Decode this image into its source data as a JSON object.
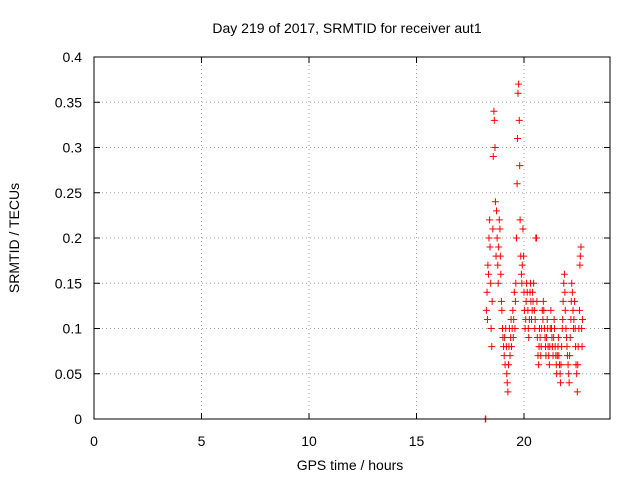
{
  "chart_data": {
    "type": "scatter",
    "title": "Day 219 of 2017, SRMTID for receiver aut1",
    "xlabel": "GPS time / hours",
    "ylabel": "SRMTID / TECUs",
    "xlim": [
      0,
      24
    ],
    "ylim": [
      0,
      0.4
    ],
    "xticks": [
      0,
      5,
      10,
      15,
      20
    ],
    "yticks": [
      0,
      0.05,
      0.1,
      0.15,
      0.2,
      0.25,
      0.3,
      0.35,
      0.4
    ],
    "grid": true,
    "marker": "+",
    "color": "#ff0000",
    "series": [
      {
        "name": "SRMTID",
        "points": [
          [
            18.2,
            0.0
          ],
          [
            18.22,
            0.0
          ],
          [
            18.25,
            0.12
          ],
          [
            18.28,
            0.14
          ],
          [
            18.3,
            0.11
          ],
          [
            18.32,
            0.17
          ],
          [
            18.35,
            0.16
          ],
          [
            18.37,
            0.2
          ],
          [
            18.4,
            0.22
          ],
          [
            18.42,
            0.19
          ],
          [
            18.45,
            0.15
          ],
          [
            18.47,
            0.1
          ],
          [
            18.5,
            0.08
          ],
          [
            18.52,
            0.13
          ],
          [
            18.55,
            0.21
          ],
          [
            18.57,
            0.29
          ],
          [
            18.6,
            0.34
          ],
          [
            18.62,
            0.33
          ],
          [
            18.65,
            0.3
          ],
          [
            18.67,
            0.24
          ],
          [
            18.7,
            0.18
          ],
          [
            18.72,
            0.23
          ],
          [
            18.75,
            0.2
          ],
          [
            18.78,
            0.17
          ],
          [
            18.8,
            0.15
          ],
          [
            18.82,
            0.19
          ],
          [
            18.85,
            0.22
          ],
          [
            18.88,
            0.21
          ],
          [
            18.9,
            0.18
          ],
          [
            18.92,
            0.16
          ],
          [
            18.95,
            0.13
          ],
          [
            18.97,
            0.12
          ],
          [
            19.0,
            0.1
          ],
          [
            19.02,
            0.09
          ],
          [
            19.05,
            0.08
          ],
          [
            19.08,
            0.07
          ],
          [
            19.1,
            0.09
          ],
          [
            19.12,
            0.06
          ],
          [
            19.15,
            0.1
          ],
          [
            19.18,
            0.08
          ],
          [
            19.2,
            0.05
          ],
          [
            19.22,
            0.04
          ],
          [
            19.25,
            0.03
          ],
          [
            19.28,
            0.06
          ],
          [
            19.3,
            0.08
          ],
          [
            19.32,
            0.1
          ],
          [
            19.35,
            0.07
          ],
          [
            19.38,
            0.09
          ],
          [
            19.4,
            0.11
          ],
          [
            19.42,
            0.08
          ],
          [
            19.45,
            0.1
          ],
          [
            19.48,
            0.12
          ],
          [
            19.5,
            0.09
          ],
          [
            19.52,
            0.11
          ],
          [
            19.55,
            0.14
          ],
          [
            19.58,
            0.1
          ],
          [
            19.6,
            0.13
          ],
          [
            19.62,
            0.15
          ],
          [
            19.65,
            0.2
          ],
          [
            19.68,
            0.26
          ],
          [
            19.7,
            0.31
          ],
          [
            19.72,
            0.36
          ],
          [
            19.75,
            0.37
          ],
          [
            19.78,
            0.33
          ],
          [
            19.8,
            0.28
          ],
          [
            19.82,
            0.22
          ],
          [
            19.85,
            0.18
          ],
          [
            19.88,
            0.16
          ],
          [
            19.9,
            0.15
          ],
          [
            19.92,
            0.17
          ],
          [
            19.95,
            0.21
          ],
          [
            19.98,
            0.18
          ],
          [
            20.0,
            0.14
          ],
          [
            20.02,
            0.12
          ],
          [
            20.05,
            0.1
          ],
          [
            20.08,
            0.11
          ],
          [
            20.1,
            0.13
          ],
          [
            20.12,
            0.15
          ],
          [
            20.15,
            0.14
          ],
          [
            20.18,
            0.12
          ],
          [
            20.2,
            0.1
          ],
          [
            20.22,
            0.09
          ],
          [
            20.25,
            0.11
          ],
          [
            20.28,
            0.14
          ],
          [
            20.3,
            0.15
          ],
          [
            20.32,
            0.13
          ],
          [
            20.35,
            0.11
          ],
          [
            20.38,
            0.12
          ],
          [
            20.4,
            0.14
          ],
          [
            20.42,
            0.13
          ],
          [
            20.45,
            0.15
          ],
          [
            20.48,
            0.12
          ],
          [
            20.5,
            0.1
          ],
          [
            20.52,
            0.11
          ],
          [
            20.55,
            0.2
          ],
          [
            20.58,
            0.2
          ],
          [
            20.6,
            0.13
          ],
          [
            20.62,
            0.09
          ],
          [
            20.65,
            0.07
          ],
          [
            20.68,
            0.06
          ],
          [
            20.7,
            0.08
          ],
          [
            20.72,
            0.1
          ],
          [
            20.75,
            0.09
          ],
          [
            20.78,
            0.07
          ],
          [
            20.8,
            0.08
          ],
          [
            20.82,
            0.1
          ],
          [
            20.85,
            0.12
          ],
          [
            20.88,
            0.11
          ],
          [
            20.9,
            0.13
          ],
          [
            20.92,
            0.12
          ],
          [
            20.95,
            0.1
          ],
          [
            20.98,
            0.09
          ],
          [
            21.0,
            0.08
          ],
          [
            21.02,
            0.07
          ],
          [
            21.05,
            0.09
          ],
          [
            21.08,
            0.11
          ],
          [
            21.1,
            0.1
          ],
          [
            21.12,
            0.08
          ],
          [
            21.15,
            0.07
          ],
          [
            21.18,
            0.06
          ],
          [
            21.2,
            0.08
          ],
          [
            21.22,
            0.1
          ],
          [
            21.25,
            0.12
          ],
          [
            21.28,
            0.1
          ],
          [
            21.3,
            0.09
          ],
          [
            21.32,
            0.08
          ],
          [
            21.35,
            0.07
          ],
          [
            21.38,
            0.09
          ],
          [
            21.4,
            0.11
          ],
          [
            21.42,
            0.1
          ],
          [
            21.45,
            0.08
          ],
          [
            21.48,
            0.07
          ],
          [
            21.5,
            0.06
          ],
          [
            21.52,
            0.05
          ],
          [
            21.55,
            0.07
          ],
          [
            21.58,
            0.08
          ],
          [
            21.6,
            0.09
          ],
          [
            21.62,
            0.07
          ],
          [
            21.65,
            0.06
          ],
          [
            21.68,
            0.05
          ],
          [
            21.7,
            0.04
          ],
          [
            21.72,
            0.06
          ],
          [
            21.75,
            0.08
          ],
          [
            21.78,
            0.1
          ],
          [
            21.8,
            0.11
          ],
          [
            21.82,
            0.13
          ],
          [
            21.85,
            0.15
          ],
          [
            21.88,
            0.16
          ],
          [
            21.9,
            0.14
          ],
          [
            21.92,
            0.12
          ],
          [
            21.95,
            0.1
          ],
          [
            21.98,
            0.09
          ],
          [
            22.0,
            0.08
          ],
          [
            22.02,
            0.07
          ],
          [
            22.05,
            0.06
          ],
          [
            22.08,
            0.05
          ],
          [
            22.1,
            0.04
          ],
          [
            22.12,
            0.07
          ],
          [
            22.15,
            0.09
          ],
          [
            22.18,
            0.11
          ],
          [
            22.2,
            0.13
          ],
          [
            22.22,
            0.15
          ],
          [
            22.25,
            0.14
          ],
          [
            22.28,
            0.12
          ],
          [
            22.3,
            0.1
          ],
          [
            22.32,
            0.11
          ],
          [
            22.35,
            0.13
          ],
          [
            22.38,
            0.1
          ],
          [
            22.4,
            0.08
          ],
          [
            22.42,
            0.06
          ],
          [
            22.45,
            0.05
          ],
          [
            22.48,
            0.03
          ],
          [
            22.5,
            0.06
          ],
          [
            22.52,
            0.08
          ],
          [
            22.55,
            0.1
          ],
          [
            22.58,
            0.12
          ],
          [
            22.6,
            0.17
          ],
          [
            22.62,
            0.18
          ],
          [
            22.65,
            0.19
          ],
          [
            22.68,
            0.1
          ],
          [
            22.7,
            0.08
          ],
          [
            22.72,
            0.11
          ]
        ]
      }
    ]
  }
}
